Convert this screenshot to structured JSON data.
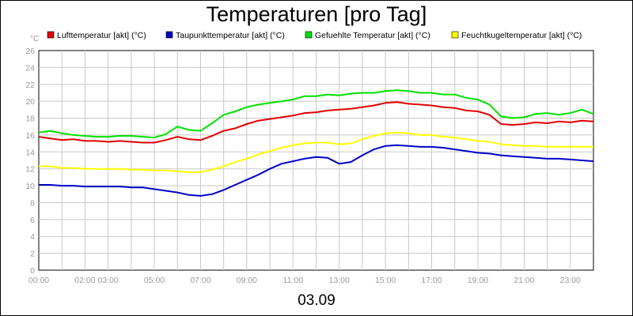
{
  "chart_data": {
    "type": "line",
    "title": "Temperaturen [pro Tag]",
    "subtitle": "03.09",
    "y_unit": "°C",
    "ylim": [
      0,
      26
    ],
    "y_ticks": [
      0,
      2,
      4,
      6,
      8,
      10,
      12,
      14,
      16,
      18,
      20,
      22,
      24,
      26
    ],
    "xlim": [
      0,
      24
    ],
    "x_tick_labels": [
      {
        "x": 0,
        "label": "00:00"
      },
      {
        "x": 2.5,
        "label": "02:00 03:00"
      },
      {
        "x": 5,
        "label": "05:00"
      },
      {
        "x": 7,
        "label": "07:00"
      },
      {
        "x": 9,
        "label": "09:00"
      },
      {
        "x": 11,
        "label": "11:00"
      },
      {
        "x": 13,
        "label": "13:00"
      },
      {
        "x": 15,
        "label": "15:00"
      },
      {
        "x": 17,
        "label": "17:00"
      },
      {
        "x": 19,
        "label": "19:00"
      },
      {
        "x": 21,
        "label": "21:00"
      },
      {
        "x": 23,
        "label": "23:00"
      }
    ],
    "grid": true,
    "legend_position": "top",
    "x": [
      0,
      0.5,
      1,
      1.5,
      2,
      2.5,
      3,
      3.5,
      4,
      4.5,
      5,
      5.5,
      6,
      6.5,
      7,
      7.5,
      8,
      8.5,
      9,
      9.5,
      10,
      10.5,
      11,
      11.5,
      12,
      12.5,
      13,
      13.5,
      14,
      14.5,
      15,
      15.5,
      16,
      16.5,
      17,
      17.5,
      18,
      18.5,
      19,
      19.5,
      20,
      20.5,
      21,
      21.5,
      22,
      22.5,
      23,
      23.5,
      24
    ],
    "series": [
      {
        "name": "Lufttemperatur [akt] (°C)",
        "color": "#e00000",
        "values": [
          15.8,
          15.6,
          15.4,
          15.5,
          15.3,
          15.3,
          15.2,
          15.3,
          15.2,
          15.1,
          15.1,
          15.4,
          15.8,
          15.5,
          15.4,
          15.9,
          16.5,
          16.8,
          17.3,
          17.7,
          17.9,
          18.1,
          18.3,
          18.6,
          18.7,
          18.9,
          19.0,
          19.1,
          19.3,
          19.5,
          19.8,
          19.9,
          19.7,
          19.6,
          19.5,
          19.3,
          19.2,
          18.9,
          18.8,
          18.4,
          17.3,
          17.2,
          17.3,
          17.5,
          17.4,
          17.6,
          17.5,
          17.7,
          17.6
        ]
      },
      {
        "name": "Taupunkttemperatur [akt] (°C)",
        "color": "#0000c8",
        "values": [
          10.1,
          10.1,
          10.0,
          10.0,
          9.9,
          9.9,
          9.9,
          9.9,
          9.8,
          9.8,
          9.6,
          9.4,
          9.2,
          8.9,
          8.8,
          9.0,
          9.5,
          10.1,
          10.7,
          11.3,
          12.0,
          12.6,
          12.9,
          13.2,
          13.4,
          13.3,
          12.6,
          12.8,
          13.6,
          14.3,
          14.7,
          14.8,
          14.7,
          14.6,
          14.6,
          14.5,
          14.3,
          14.1,
          13.9,
          13.8,
          13.6,
          13.5,
          13.4,
          13.3,
          13.2,
          13.2,
          13.1,
          13.0,
          12.9
        ]
      },
      {
        "name": "Gefuehlte Temperatur [akt] (°C)",
        "color": "#00e000",
        "values": [
          16.3,
          16.5,
          16.2,
          16.0,
          15.9,
          15.8,
          15.8,
          15.9,
          15.9,
          15.8,
          15.7,
          16.1,
          17.0,
          16.6,
          16.5,
          17.4,
          18.4,
          18.8,
          19.3,
          19.6,
          19.8,
          20.0,
          20.2,
          20.6,
          20.6,
          20.8,
          20.7,
          20.9,
          21.0,
          21.0,
          21.2,
          21.3,
          21.2,
          21.0,
          21.0,
          20.8,
          20.8,
          20.4,
          20.2,
          19.6,
          18.2,
          18.0,
          18.1,
          18.5,
          18.6,
          18.4,
          18.6,
          19.0,
          18.5
        ]
      },
      {
        "name": "Feuchtkugeltemperatur [akt] (°C)",
        "color": "#ffff00",
        "values": [
          12.3,
          12.3,
          12.1,
          12.1,
          12.0,
          12.0,
          12.0,
          12.0,
          11.9,
          11.9,
          11.8,
          11.8,
          11.7,
          11.6,
          11.6,
          11.9,
          12.3,
          12.8,
          13.2,
          13.7,
          14.1,
          14.5,
          14.8,
          15.0,
          15.1,
          15.1,
          14.9,
          15.0,
          15.5,
          15.9,
          16.2,
          16.3,
          16.2,
          16.0,
          16.0,
          15.8,
          15.7,
          15.5,
          15.3,
          15.2,
          14.9,
          14.8,
          14.7,
          14.7,
          14.6,
          14.6,
          14.6,
          14.6,
          14.6
        ]
      }
    ]
  }
}
